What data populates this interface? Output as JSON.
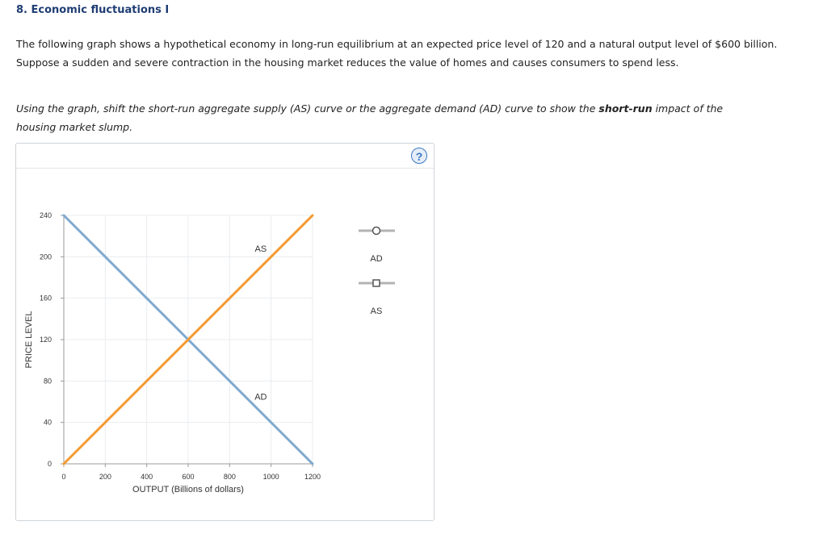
{
  "question": {
    "title": "8. Economic fluctuations I",
    "intro_line1": "The following graph shows a hypothetical economy in long-run equilibrium at an expected price level of 120 and a natural output level of $600 billion.",
    "intro_line2": "Suppose a sudden and severe contraction in the housing market reduces the value of homes and causes consumers to spend less.",
    "instruction_part1": "Using the graph, shift the short-run aggregate supply (AS) curve or the aggregate demand (AD) curve to show the ",
    "instruction_bold": "short-run",
    "instruction_part2": " impact of the housing market slump."
  },
  "help": {
    "label": "?"
  },
  "chart_data": {
    "type": "line",
    "xlabel": "OUTPUT (Billions of dollars)",
    "ylabel": "PRICE LEVEL",
    "xlim": [
      0,
      1200
    ],
    "ylim": [
      0,
      240
    ],
    "x_ticks": [
      0,
      200,
      400,
      600,
      800,
      1000,
      1200
    ],
    "y_ticks": [
      0,
      40,
      80,
      120,
      160,
      200,
      240
    ],
    "grid": true,
    "series": [
      {
        "name": "AD",
        "color": "#7fa9cf",
        "points": [
          [
            0,
            240
          ],
          [
            1200,
            0
          ]
        ]
      },
      {
        "name": "AS",
        "color": "#f59a2f",
        "points": [
          [
            0,
            0
          ],
          [
            1200,
            240
          ]
        ]
      }
    ],
    "annotations": [
      {
        "text": "AS",
        "x": 950,
        "y": 205
      },
      {
        "text": "AD",
        "x": 950,
        "y": 62
      }
    ]
  },
  "palette": {
    "items": [
      {
        "label": "AD",
        "marker": "circle",
        "color": "#b3b3b3",
        "marker_color": "#555555"
      },
      {
        "label": "AS",
        "marker": "square",
        "color": "#b3b3b3",
        "marker_color": "#555555"
      }
    ]
  }
}
